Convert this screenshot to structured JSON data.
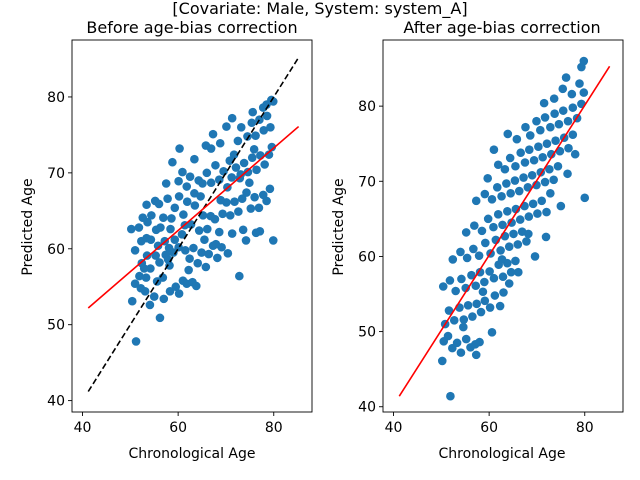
{
  "figure": {
    "suptitle": "[Covariate: Male, System: system_A]"
  },
  "chart_data": [
    {
      "type": "scatter",
      "title": "Before age-bias correction",
      "xlabel": "Chronological Age",
      "ylabel": "Predicted Age",
      "xlim": [
        37.8,
        88.0
      ],
      "ylim": [
        38.5,
        87.5
      ],
      "xticks": [
        40,
        60,
        80
      ],
      "yticks": [
        40,
        50,
        60,
        70,
        80
      ],
      "grid": false,
      "point_color": "#1f77b4",
      "points": [
        [
          51.2,
          47.8
        ],
        [
          50.4,
          53.1
        ],
        [
          51.0,
          55.4
        ],
        [
          51.9,
          56.4
        ],
        [
          52.2,
          54.8
        ],
        [
          53.3,
          56.2
        ],
        [
          53.1,
          54.4
        ],
        [
          54.1,
          52.6
        ],
        [
          55.0,
          53.7
        ],
        [
          56.2,
          50.9
        ],
        [
          57.0,
          53.4
        ],
        [
          58.3,
          54.4
        ],
        [
          59.5,
          55.0
        ],
        [
          60.2,
          54.1
        ],
        [
          61.0,
          55.8
        ],
        [
          61.8,
          55.4
        ],
        [
          63.0,
          55.6
        ],
        [
          63.8,
          55.1
        ],
        [
          52.4,
          58.1
        ],
        [
          53.5,
          59.1
        ],
        [
          54.2,
          57.4
        ],
        [
          55.3,
          59.1
        ],
        [
          56.1,
          58.2
        ],
        [
          56.8,
          56.2
        ],
        [
          57.4,
          59.2
        ],
        [
          58.2,
          57.8
        ],
        [
          59.0,
          59.5
        ],
        [
          51.0,
          59.8
        ],
        [
          50.2,
          62.6
        ],
        [
          51.8,
          62.8
        ],
        [
          52.3,
          61.0
        ],
        [
          53.4,
          61.4
        ],
        [
          54.3,
          61.2
        ],
        [
          55.4,
          62.5
        ],
        [
          56.3,
          62.8
        ],
        [
          57.2,
          61.0
        ],
        [
          58.4,
          62.6
        ],
        [
          59.3,
          61.2
        ],
        [
          60.1,
          60.2
        ],
        [
          60.8,
          61.9
        ],
        [
          61.5,
          59.8
        ],
        [
          62.4,
          58.7
        ],
        [
          63.2,
          60.1
        ],
        [
          64.1,
          58.1
        ],
        [
          64.9,
          59.5
        ],
        [
          65.8,
          57.6
        ],
        [
          66.4,
          59.3
        ],
        [
          67.3,
          60.4
        ],
        [
          68.2,
          58.8
        ],
        [
          69.1,
          60.2
        ],
        [
          70.4,
          59.4
        ],
        [
          71.3,
          62.0
        ],
        [
          72.8,
          56.4
        ],
        [
          73.6,
          62.5
        ],
        [
          74.2,
          61.1
        ],
        [
          76.3,
          62.1
        ],
        [
          77.1,
          62.3
        ],
        [
          79.9,
          61.1
        ],
        [
          52.6,
          64.1
        ],
        [
          53.4,
          65.8
        ],
        [
          54.4,
          64.4
        ],
        [
          55.2,
          66.3
        ],
        [
          56.0,
          65.9
        ],
        [
          56.9,
          64.1
        ],
        [
          57.8,
          66.6
        ],
        [
          58.6,
          64.0
        ],
        [
          59.3,
          65.4
        ],
        [
          60.2,
          66.9
        ],
        [
          61.1,
          64.5
        ],
        [
          61.9,
          66.2
        ],
        [
          62.7,
          63.2
        ],
        [
          63.5,
          65.7
        ],
        [
          64.4,
          62.4
        ],
        [
          65.2,
          64.4
        ],
        [
          66.1,
          62.6
        ],
        [
          66.8,
          64.3
        ],
        [
          67.7,
          63.9
        ],
        [
          68.6,
          62.2
        ],
        [
          69.3,
          64.6
        ],
        [
          70.1,
          66.1
        ],
        [
          70.9,
          64.4
        ],
        [
          71.8,
          66.2
        ],
        [
          72.6,
          64.9
        ],
        [
          73.4,
          66.6
        ],
        [
          74.3,
          67.4
        ],
        [
          75.2,
          65.3
        ],
        [
          76.0,
          66.8
        ],
        [
          76.9,
          65.4
        ],
        [
          77.8,
          67.1
        ],
        [
          78.5,
          66.3
        ],
        [
          79.2,
          67.9
        ],
        [
          57.5,
          68.6
        ],
        [
          58.8,
          71.4
        ],
        [
          60.1,
          68.9
        ],
        [
          60.9,
          70.1
        ],
        [
          61.8,
          68.2
        ],
        [
          62.5,
          69.5
        ],
        [
          63.4,
          67.3
        ],
        [
          64.3,
          69.0
        ],
        [
          65.1,
          68.6
        ],
        [
          66.0,
          70.0
        ],
        [
          66.9,
          68.7
        ],
        [
          67.8,
          71.0
        ],
        [
          68.6,
          69.1
        ],
        [
          69.5,
          70.2
        ],
        [
          70.3,
          68.1
        ],
        [
          71.2,
          69.4
        ],
        [
          72.1,
          70.7
        ],
        [
          72.9,
          69.3
        ],
        [
          73.8,
          71.3
        ],
        [
          74.6,
          70.1
        ],
        [
          75.5,
          72.0
        ],
        [
          76.4,
          70.4
        ],
        [
          77.2,
          72.3
        ],
        [
          78.1,
          71.1
        ],
        [
          79.0,
          72.4
        ],
        [
          79.6,
          73.4
        ],
        [
          60.3,
          73.2
        ],
        [
          63.4,
          71.8
        ],
        [
          65.8,
          73.6
        ],
        [
          66.9,
          73.2
        ],
        [
          67.3,
          75.1
        ],
        [
          68.8,
          73.9
        ],
        [
          70.1,
          76.1
        ],
        [
          71.3,
          77.2
        ],
        [
          72.5,
          74.2
        ],
        [
          73.2,
          76.0
        ],
        [
          74.5,
          74.8
        ],
        [
          75.4,
          76.6
        ],
        [
          76.2,
          74.9
        ],
        [
          77.0,
          77.0
        ],
        [
          77.9,
          75.6
        ],
        [
          78.6,
          77.5
        ],
        [
          79.3,
          76.0
        ],
        [
          75.6,
          78.0
        ],
        [
          77.8,
          78.6
        ],
        [
          78.5,
          79.0
        ],
        [
          79.5,
          79.6
        ],
        [
          79.9,
          79.4
        ],
        [
          53.6,
          63.5
        ],
        [
          55.8,
          60.4
        ],
        [
          58.1,
          60.1
        ],
        [
          62.2,
          57.2
        ],
        [
          65.5,
          61.2
        ],
        [
          68.9,
          66.4
        ],
        [
          71.7,
          72.4
        ],
        [
          74.9,
          68.7
        ],
        [
          52.9,
          57.4
        ],
        [
          55.6,
          55.7
        ],
        [
          57.9,
          58.6
        ],
        [
          61.4,
          63.1
        ],
        [
          64.7,
          66.9
        ],
        [
          67.9,
          60.6
        ],
        [
          70.8,
          71.6
        ],
        [
          73.1,
          69.8
        ],
        [
          75.9,
          73.1
        ]
      ],
      "regression_line": {
        "color": "#ff0000",
        "x": [
          41.2,
          85.2
        ],
        "y": [
          52.2,
          76.1
        ]
      },
      "identity_line": {
        "color": "#000000",
        "style": "dashed",
        "x": [
          41.2,
          85.2
        ],
        "y": [
          41.2,
          85.2
        ]
      }
    },
    {
      "type": "scatter",
      "title": "After age-bias correction",
      "xlabel": "Chronological Age",
      "ylabel": "Predicted Age",
      "xlim": [
        37.8,
        88.0
      ],
      "ylim": [
        39.3,
        88.8
      ],
      "xticks": [
        40,
        60,
        80
      ],
      "yticks": [
        40,
        50,
        60,
        70,
        80
      ],
      "grid": false,
      "point_color": "#1f77b4",
      "points": [
        [
          51.9,
          41.4
        ],
        [
          50.2,
          46.1
        ],
        [
          50.5,
          48.7
        ],
        [
          51.4,
          49.4
        ],
        [
          52.3,
          47.8
        ],
        [
          53.3,
          48.5
        ],
        [
          54.1,
          47.2
        ],
        [
          55.2,
          49.0
        ],
        [
          56.1,
          47.9
        ],
        [
          57.3,
          46.9
        ],
        [
          58.0,
          48.6
        ],
        [
          50.8,
          51.0
        ],
        [
          51.6,
          52.8
        ],
        [
          52.7,
          51.5
        ],
        [
          53.8,
          53.2
        ],
        [
          54.7,
          51.6
        ],
        [
          55.6,
          53.5
        ],
        [
          56.5,
          52.0
        ],
        [
          57.4,
          53.7
        ],
        [
          58.3,
          52.6
        ],
        [
          59.1,
          54.1
        ],
        [
          60.2,
          53.2
        ],
        [
          61.2,
          54.8
        ],
        [
          62.3,
          53.4
        ],
        [
          63.0,
          55.2
        ],
        [
          50.4,
          56.0
        ],
        [
          51.8,
          56.8
        ],
        [
          53.0,
          55.4
        ],
        [
          54.2,
          57.0
        ],
        [
          55.1,
          55.8
        ],
        [
          56.3,
          57.5
        ],
        [
          57.2,
          56.1
        ],
        [
          58.1,
          57.9
        ],
        [
          59.0,
          56.6
        ],
        [
          60.1,
          58.0
        ],
        [
          61.0,
          57.1
        ],
        [
          62.0,
          58.9
        ],
        [
          62.9,
          57.3
        ],
        [
          63.8,
          59.1
        ],
        [
          64.6,
          57.9
        ],
        [
          65.5,
          59.4
        ],
        [
          52.4,
          59.6
        ],
        [
          54.0,
          60.6
        ],
        [
          55.4,
          59.8
        ],
        [
          56.7,
          61.0
        ],
        [
          57.9,
          60.1
        ],
        [
          59.2,
          61.8
        ],
        [
          60.3,
          60.4
        ],
        [
          61.4,
          62.2
        ],
        [
          62.4,
          60.8
        ],
        [
          63.3,
          62.7
        ],
        [
          64.2,
          61.3
        ],
        [
          65.1,
          63.0
        ],
        [
          66.0,
          61.6
        ],
        [
          66.9,
          63.3
        ],
        [
          67.8,
          62.0
        ],
        [
          55.2,
          63.2
        ],
        [
          56.9,
          64.1
        ],
        [
          58.5,
          63.4
        ],
        [
          59.8,
          65.0
        ],
        [
          60.9,
          63.9
        ],
        [
          61.9,
          65.6
        ],
        [
          62.8,
          64.2
        ],
        [
          63.8,
          66.0
        ],
        [
          64.7,
          64.5
        ],
        [
          65.6,
          66.3
        ],
        [
          66.5,
          64.9
        ],
        [
          67.4,
          66.7
        ],
        [
          68.3,
          65.3
        ],
        [
          69.2,
          67.0
        ],
        [
          70.1,
          65.7
        ],
        [
          71.0,
          67.4
        ],
        [
          72.0,
          65.9
        ],
        [
          57.3,
          67.4
        ],
        [
          59.1,
          68.3
        ],
        [
          60.6,
          67.6
        ],
        [
          61.7,
          69.2
        ],
        [
          62.6,
          68.0
        ],
        [
          63.6,
          69.7
        ],
        [
          64.5,
          68.4
        ],
        [
          65.4,
          70.1
        ],
        [
          66.3,
          68.7
        ],
        [
          67.2,
          70.5
        ],
        [
          68.1,
          69.2
        ],
        [
          69.0,
          70.8
        ],
        [
          69.9,
          69.5
        ],
        [
          70.8,
          71.2
        ],
        [
          71.7,
          69.9
        ],
        [
          72.6,
          71.6
        ],
        [
          73.5,
          70.2
        ],
        [
          74.4,
          72.0
        ],
        [
          59.7,
          70.4
        ],
        [
          61.9,
          72.2
        ],
        [
          63.3,
          71.6
        ],
        [
          64.4,
          73.1
        ],
        [
          65.5,
          72.0
        ],
        [
          66.6,
          73.8
        ],
        [
          67.5,
          72.5
        ],
        [
          68.4,
          74.2
        ],
        [
          69.4,
          72.8
        ],
        [
          70.3,
          74.6
        ],
        [
          71.2,
          73.2
        ],
        [
          72.1,
          75.0
        ],
        [
          73.0,
          73.6
        ],
        [
          73.9,
          75.4
        ],
        [
          74.8,
          74.0
        ],
        [
          75.7,
          75.8
        ],
        [
          76.6,
          74.4
        ],
        [
          77.5,
          76.2
        ],
        [
          61.0,
          74.2
        ],
        [
          63.9,
          76.3
        ],
        [
          65.8,
          75.6
        ],
        [
          67.6,
          77.2
        ],
        [
          68.6,
          76.1
        ],
        [
          69.9,
          78.0
        ],
        [
          70.7,
          76.8
        ],
        [
          71.7,
          78.5
        ],
        [
          72.8,
          77.2
        ],
        [
          73.7,
          79.0
        ],
        [
          74.6,
          77.6
        ],
        [
          75.5,
          79.4
        ],
        [
          76.5,
          78.0
        ],
        [
          77.5,
          79.8
        ],
        [
          78.4,
          78.4
        ],
        [
          79.3,
          80.3
        ],
        [
          71.5,
          80.4
        ],
        [
          73.6,
          81.0
        ],
        [
          75.4,
          82.3
        ],
        [
          77.3,
          81.6
        ],
        [
          78.9,
          83.0
        ],
        [
          79.8,
          81.8
        ],
        [
          76.1,
          83.8
        ],
        [
          79.3,
          85.2
        ],
        [
          79.8,
          86.0
        ],
        [
          80.0,
          67.8
        ],
        [
          69.6,
          60.0
        ],
        [
          71.9,
          62.6
        ],
        [
          75.0,
          66.7
        ],
        [
          72.8,
          68.4
        ],
        [
          66.1,
          57.9
        ],
        [
          60.6,
          49.9
        ],
        [
          57.1,
          48.3
        ],
        [
          54.6,
          50.6
        ],
        [
          58.7,
          55.3
        ],
        [
          62.7,
          59.6
        ],
        [
          68.2,
          63.0
        ],
        [
          76.4,
          71.0
        ],
        [
          78.0,
          73.6
        ],
        [
          64.2,
          56.4
        ]
      ],
      "regression_line": {
        "color": "#ff0000",
        "x": [
          41.2,
          85.2
        ],
        "y": [
          41.4,
          85.3
        ]
      }
    }
  ]
}
